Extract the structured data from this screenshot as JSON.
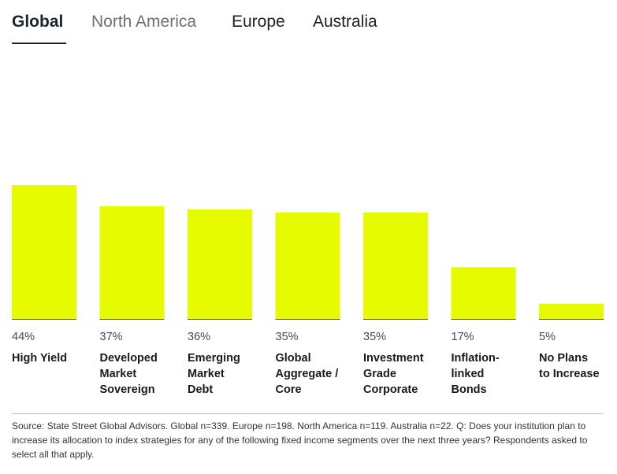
{
  "tabs": [
    {
      "label": "Global",
      "active": true
    },
    {
      "label": "North America",
      "active": false
    },
    {
      "label": "Europe",
      "active": false
    },
    {
      "label": "Australia",
      "active": false
    }
  ],
  "colors": {
    "bar": "#e6fa00",
    "baseline": "#4a4a4a",
    "tab_active": "#1a2433"
  },
  "chart_data": {
    "type": "bar",
    "categories": [
      "High Yield",
      "Developed Market Sovereign",
      "Emerging Market Debt",
      "Global Aggregate / Core",
      "Investment Grade Corporate",
      "Inflation-linked Bonds",
      "No Plans to Increase"
    ],
    "category_lines": [
      [
        "High Yield"
      ],
      [
        "Developed",
        "Market",
        "Sovereign"
      ],
      [
        "Emerging",
        "Market",
        "Debt"
      ],
      [
        "Global",
        "Aggregate /",
        "Core"
      ],
      [
        "Investment",
        "Grade",
        "Corporate"
      ],
      [
        "Inflation-",
        "linked",
        "Bonds"
      ],
      [
        "No Plans",
        "to Increase"
      ]
    ],
    "values": [
      44,
      37,
      36,
      35,
      35,
      17,
      5
    ],
    "value_labels": [
      "44%",
      "37%",
      "36%",
      "35%",
      "35%",
      "17%",
      "5%"
    ],
    "unit": "%",
    "ylim": [
      0,
      44
    ],
    "grid": false,
    "legend": "none"
  },
  "source": "Source: State Street Global Advisors. Global n=339. Europe n=198. North America n=119. Australia n=22. Q: Does your institution plan to increase its allocation to index strategies for any of the following fixed income segments over the next three years? Respondents asked to select all that apply."
}
